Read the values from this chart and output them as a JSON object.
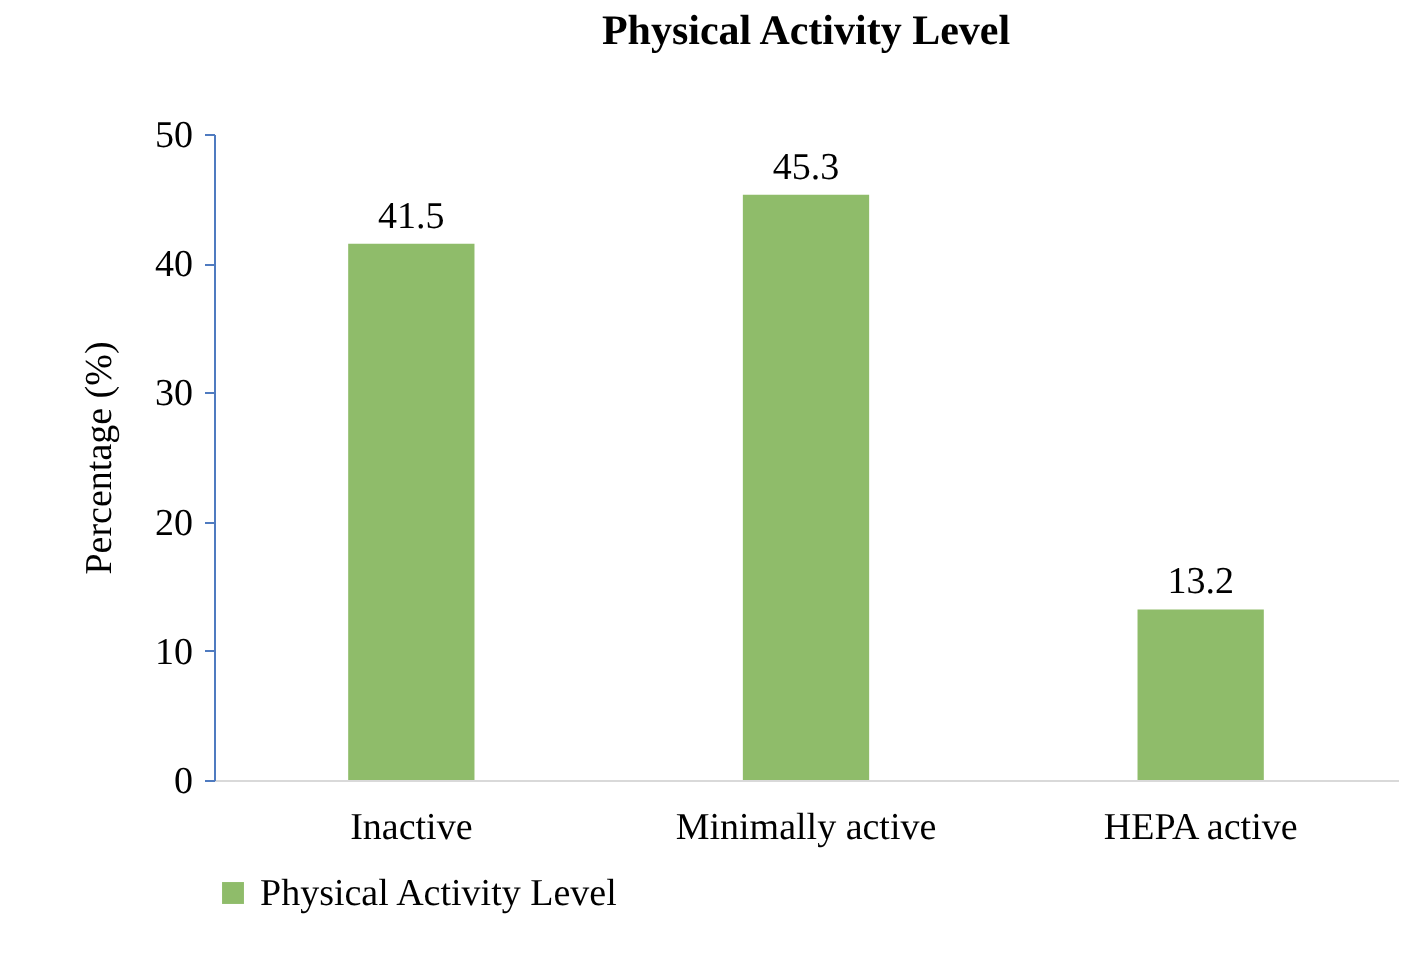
{
  "chart_data": {
    "type": "bar",
    "title": "Physical Activity Level",
    "ylabel": "Percentage (%)",
    "categories": [
      "Inactive",
      "Minimally active",
      "HEPA active"
    ],
    "series": [
      {
        "name": "Physical Activity Level",
        "color": "#8fbc6a",
        "values": [
          41.5,
          45.3,
          13.2
        ]
      }
    ],
    "ylim": [
      0,
      50
    ],
    "yticks": [
      0,
      10,
      20,
      30,
      40,
      50
    ],
    "data_labels": true,
    "legend": "bottom",
    "grid": false
  }
}
